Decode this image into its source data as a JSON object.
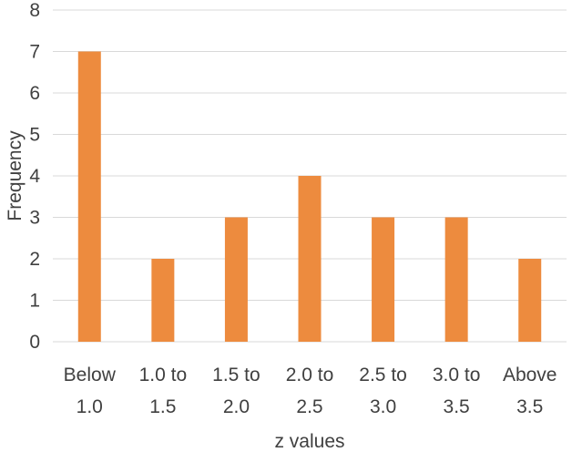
{
  "chart_data": {
    "type": "bar",
    "categories": [
      [
        "Below",
        "1.0"
      ],
      [
        "1.0 to",
        "1.5"
      ],
      [
        "1.5 to",
        "2.0"
      ],
      [
        "2.0 to",
        "2.5"
      ],
      [
        "2.5 to",
        "3.0"
      ],
      [
        "3.0 to",
        "3.5"
      ],
      [
        "Above",
        "3.5"
      ]
    ],
    "values": [
      7,
      2,
      3,
      4,
      3,
      3,
      2
    ],
    "title": "",
    "xlabel": "z values",
    "ylabel": "Frequency",
    "ylim": [
      0,
      8
    ],
    "yticks": [
      "0",
      "1",
      "2",
      "3",
      "4",
      "5",
      "6",
      "7",
      "8"
    ],
    "grid": true,
    "legend": "none",
    "colors": {
      "bar": "#ED8B3E",
      "grid": "#D9D9D9",
      "text": "#404040"
    }
  }
}
